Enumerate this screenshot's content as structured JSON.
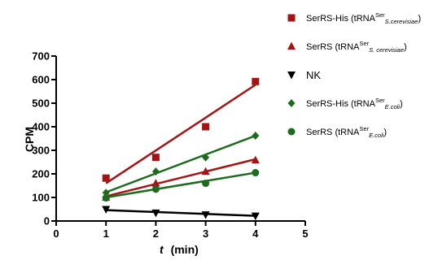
{
  "chart_data": {
    "type": "scatter",
    "xlabel_italic": "t",
    "xlabel_unit": "(min)",
    "ylabel": "CPM",
    "xlim": [
      0,
      5
    ],
    "ylim": [
      0,
      700
    ],
    "xticks": [
      0,
      1,
      2,
      3,
      4,
      5
    ],
    "yticks": [
      0,
      100,
      200,
      300,
      400,
      500,
      600,
      700
    ],
    "grid": false,
    "legend_position": "top-right",
    "series": [
      {
        "legend": {
          "base": "SerRS-His (tRNA",
          "sup": "Ser",
          "sub": "S.cerevisiae",
          "end": ")"
        },
        "marker": "square",
        "color": "#A31515",
        "x": [
          1,
          2,
          3,
          4
        ],
        "y": [
          182,
          270,
          400,
          592
        ],
        "fit": [
          [
            1,
            160
          ],
          [
            4,
            578
          ]
        ]
      },
      {
        "legend": {
          "base": "SerRS (tRNA",
          "sup": "Ser",
          "sub": "S. cerevisiae",
          "end": ")"
        },
        "marker": "triangle-up",
        "color": "#A31515",
        "x": [
          1,
          2,
          3,
          4
        ],
        "y": [
          100,
          160,
          210,
          258
        ],
        "fit": [
          [
            1,
            105
          ],
          [
            4,
            262
          ]
        ]
      },
      {
        "legend": {
          "base": "NK",
          "sup": "",
          "sub": "",
          "end": ""
        },
        "marker": "triangle-down",
        "color": "#000000",
        "x": [
          1,
          2,
          3,
          4
        ],
        "y": [
          50,
          35,
          27,
          22
        ],
        "fit": [
          [
            1,
            46
          ],
          [
            4,
            22
          ]
        ]
      },
      {
        "legend": {
          "base": "SerRS-His (tRNA",
          "sup": "Ser",
          "sub": "E.coli",
          "end": ")"
        },
        "marker": "diamond",
        "color": "#1E6B1E",
        "x": [
          1,
          2,
          3,
          4
        ],
        "y": [
          120,
          210,
          270,
          362
        ],
        "fit": [
          [
            1,
            122
          ],
          [
            4,
            362
          ]
        ]
      },
      {
        "legend": {
          "base": "SerRS (tRNA",
          "sup": "Ser",
          "sub": "E.coli",
          "end": ")"
        },
        "marker": "circle",
        "color": "#1E6B1E",
        "x": [
          1,
          2,
          3,
          4
        ],
        "y": [
          98,
          135,
          160,
          205
        ],
        "fit": [
          [
            1,
            100
          ],
          [
            4,
            205
          ]
        ]
      }
    ]
  }
}
